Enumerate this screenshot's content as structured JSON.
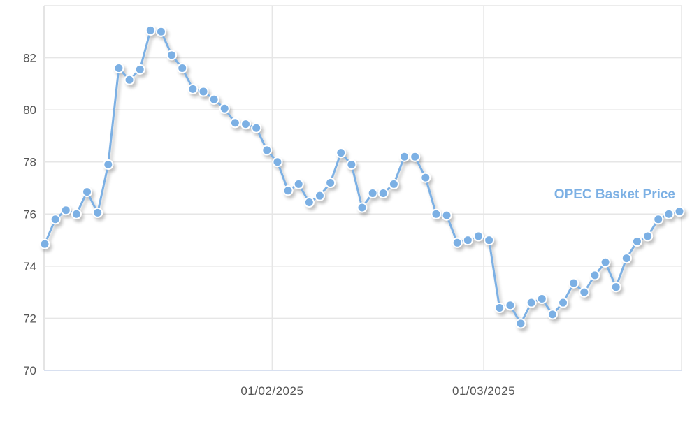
{
  "chart_data": {
    "type": "line",
    "title": "",
    "xlabel": "",
    "ylabel": "",
    "ylim": [
      70,
      84
    ],
    "yticks": [
      70,
      72,
      74,
      76,
      78,
      80,
      82
    ],
    "grid": true,
    "legend": "inline-label-right",
    "x_tick_labels": [
      {
        "label": "01/02/2025",
        "between": [
          "2025-01-31",
          "2025-02-03"
        ]
      },
      {
        "label": "01/03/2025",
        "between": [
          "2025-02-28",
          "2025-03-03"
        ]
      }
    ],
    "series": [
      {
        "name": "OPEC Basket Price",
        "color": "#7cb0e4",
        "x": [
          "2025-01-02",
          "2025-01-03",
          "2025-01-06",
          "2025-01-07",
          "2025-01-08",
          "2025-01-09",
          "2025-01-10",
          "2025-01-13",
          "2025-01-14",
          "2025-01-15",
          "2025-01-16",
          "2025-01-17",
          "2025-01-20",
          "2025-01-21",
          "2025-01-22",
          "2025-01-23",
          "2025-01-24",
          "2025-01-27",
          "2025-01-28",
          "2025-01-29",
          "2025-01-30",
          "2025-01-31",
          "2025-02-03",
          "2025-02-04",
          "2025-02-05",
          "2025-02-06",
          "2025-02-07",
          "2025-02-10",
          "2025-02-11",
          "2025-02-12",
          "2025-02-13",
          "2025-02-14",
          "2025-02-17",
          "2025-02-18",
          "2025-02-19",
          "2025-02-20",
          "2025-02-21",
          "2025-02-24",
          "2025-02-25",
          "2025-02-26",
          "2025-02-27",
          "2025-02-28",
          "2025-03-03",
          "2025-03-04",
          "2025-03-05",
          "2025-03-06",
          "2025-03-07",
          "2025-03-10",
          "2025-03-11",
          "2025-03-12",
          "2025-03-13",
          "2025-03-14",
          "2025-03-17",
          "2025-03-18",
          "2025-03-19",
          "2025-03-20",
          "2025-03-21",
          "2025-03-24",
          "2025-03-25",
          "2025-03-26",
          "2025-03-27"
        ],
        "values": [
          74.85,
          75.8,
          76.15,
          76.0,
          76.85,
          76.05,
          77.9,
          81.6,
          81.15,
          81.55,
          83.05,
          83.0,
          82.1,
          81.6,
          80.8,
          80.7,
          80.4,
          80.05,
          79.5,
          79.45,
          79.3,
          78.45,
          78.0,
          76.9,
          77.15,
          76.45,
          76.7,
          77.2,
          78.35,
          77.9,
          76.25,
          76.8,
          76.8,
          77.15,
          78.2,
          78.2,
          77.4,
          76.0,
          75.95,
          74.9,
          75.0,
          75.15,
          75.0,
          72.4,
          72.5,
          71.8,
          72.6,
          72.75,
          72.15,
          72.6,
          73.35,
          73.0,
          73.65,
          74.15,
          73.2,
          74.3,
          74.95,
          75.15,
          75.8,
          76.0,
          76.1
        ]
      }
    ]
  }
}
